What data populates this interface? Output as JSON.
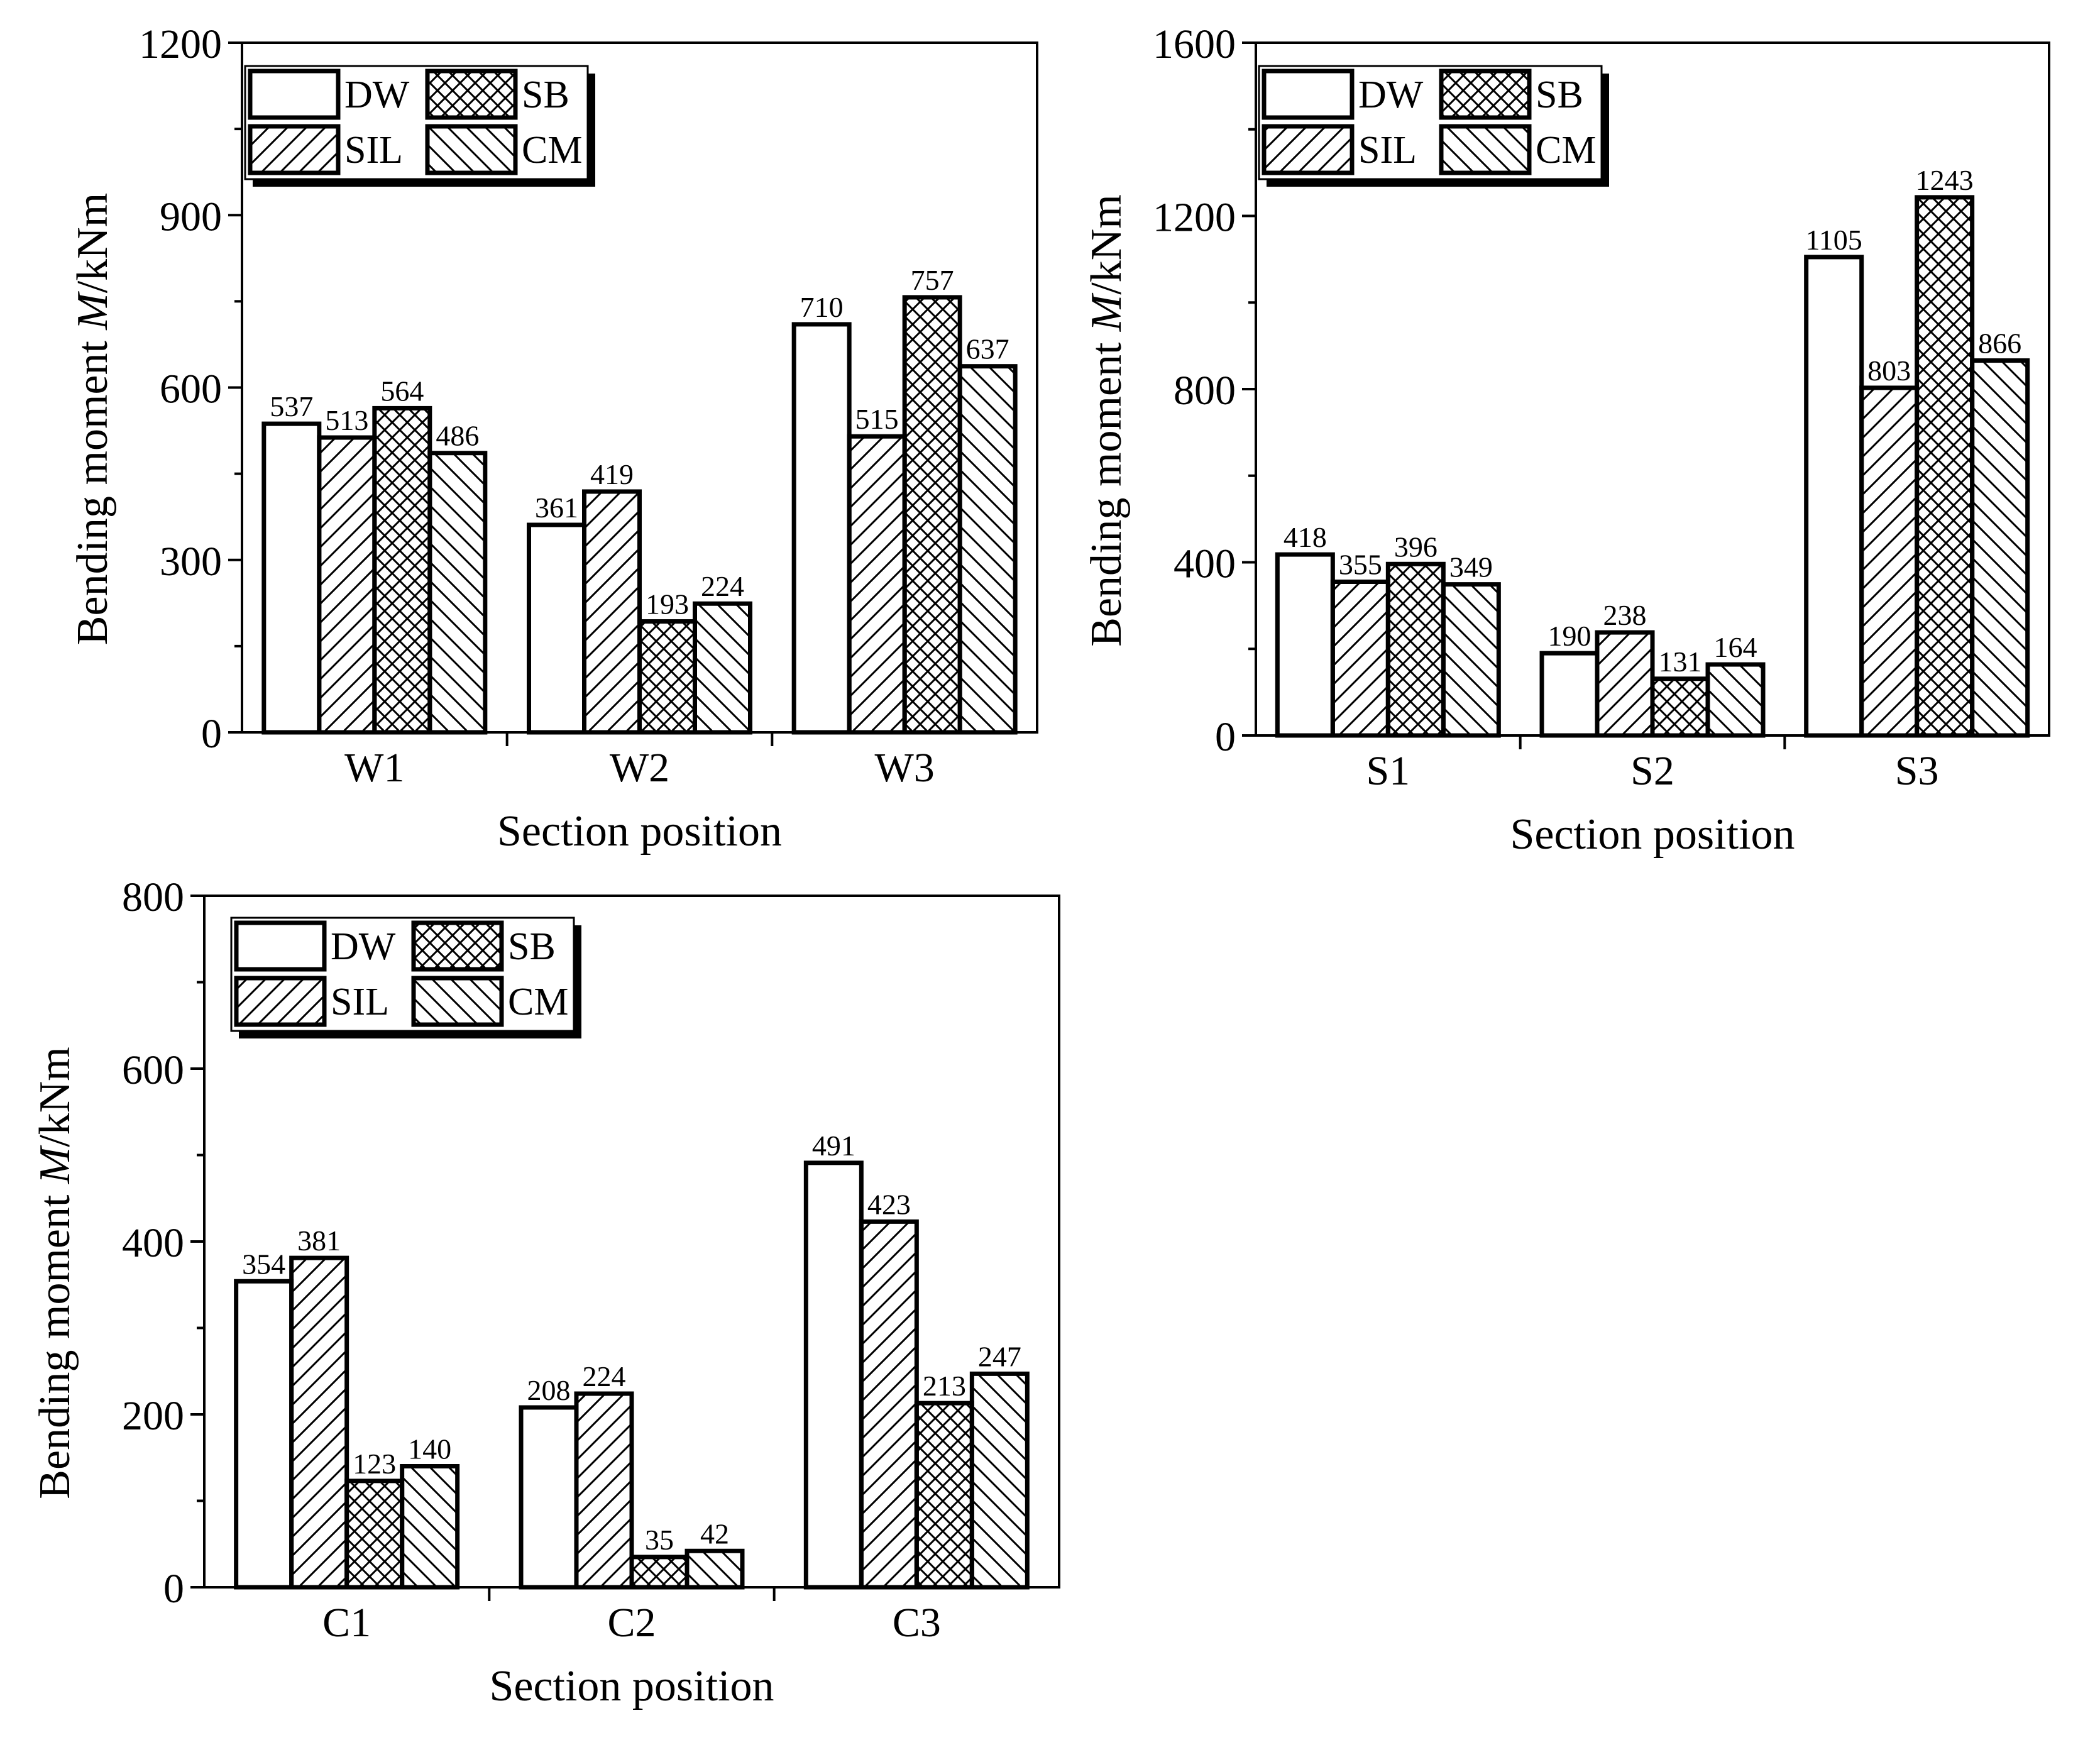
{
  "legend_entries": [
    {
      "key": "DW",
      "label": "DW",
      "pattern": "none"
    },
    {
      "key": "SB",
      "label": "SB",
      "pattern": "crosshatch"
    },
    {
      "key": "SIL",
      "label": "SIL",
      "pattern": "diag-up"
    },
    {
      "key": "CM",
      "label": "CM",
      "pattern": "diag-down"
    }
  ],
  "chart_data": [
    {
      "id": "W",
      "type": "bar",
      "title": "",
      "xlabel": "Section position",
      "ylabel_prefix": "Bending moment ",
      "ylabel_var": "M",
      "ylabel_suffix": "/kNm",
      "ylim": [
        0,
        1200
      ],
      "yticks": [
        0,
        300,
        600,
        900,
        1200
      ],
      "categories": [
        "W1",
        "W2",
        "W3"
      ],
      "series": [
        {
          "name": "DW",
          "values": [
            537,
            361,
            710
          ]
        },
        {
          "name": "SIL",
          "values": [
            513,
            419,
            515
          ]
        },
        {
          "name": "SB",
          "values": [
            564,
            193,
            757
          ]
        },
        {
          "name": "CM",
          "values": [
            486,
            224,
            637
          ]
        }
      ],
      "legend": "top-left"
    },
    {
      "id": "S",
      "type": "bar",
      "title": "",
      "xlabel": "Section position",
      "ylabel_prefix": "Bending moment ",
      "ylabel_var": "M",
      "ylabel_suffix": "/kNm",
      "ylim": [
        0,
        1600
      ],
      "yticks": [
        0,
        400,
        800,
        1200,
        1600
      ],
      "categories": [
        "S1",
        "S2",
        "S3"
      ],
      "series": [
        {
          "name": "DW",
          "values": [
            418,
            190,
            1105
          ]
        },
        {
          "name": "SIL",
          "values": [
            355,
            238,
            803
          ]
        },
        {
          "name": "SB",
          "values": [
            396,
            131,
            1243
          ]
        },
        {
          "name": "CM",
          "values": [
            349,
            164,
            866
          ]
        }
      ],
      "legend": "top-left"
    },
    {
      "id": "C",
      "type": "bar",
      "title": "",
      "xlabel": "Section position",
      "ylabel_prefix": "Bending moment ",
      "ylabel_var": "M",
      "ylabel_suffix": "/kNm",
      "ylim": [
        0,
        800
      ],
      "yticks": [
        0,
        200,
        400,
        600,
        800
      ],
      "categories": [
        "C1",
        "C2",
        "C3"
      ],
      "series": [
        {
          "name": "DW",
          "values": [
            354,
            208,
            491
          ]
        },
        {
          "name": "SIL",
          "values": [
            381,
            224,
            423
          ]
        },
        {
          "name": "SB",
          "values": [
            123,
            35,
            213
          ]
        },
        {
          "name": "CM",
          "values": [
            140,
            42,
            247
          ]
        }
      ],
      "legend": "top-left"
    }
  ]
}
